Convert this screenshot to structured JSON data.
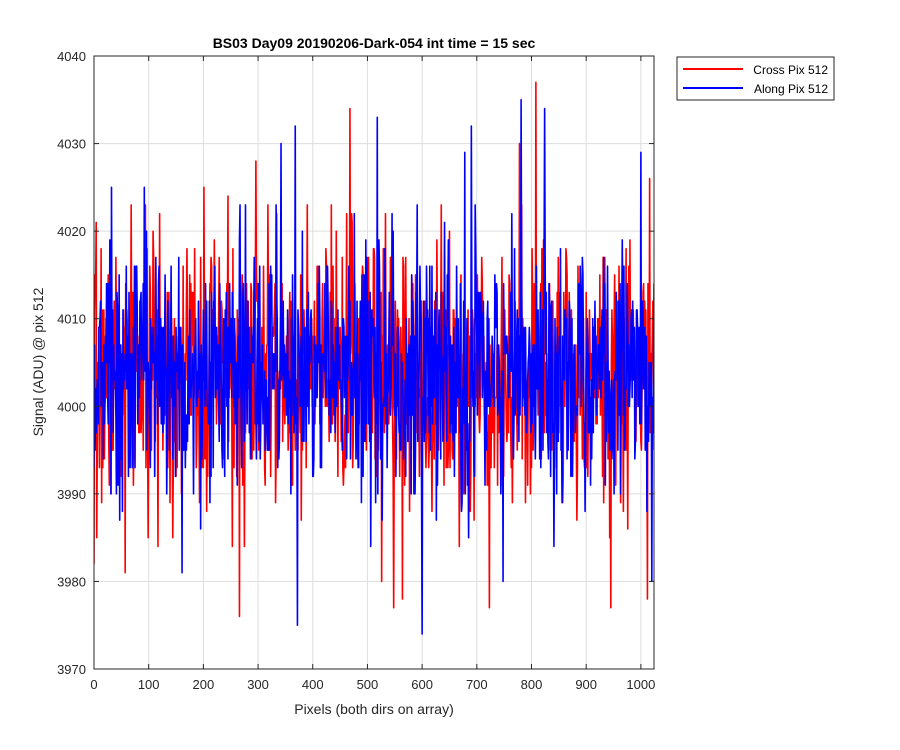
{
  "chart_data": {
    "type": "line",
    "title": "BS03 Day09 20190206-Dark-054 int time = 15 sec",
    "xlabel": "Pixels (both dirs on array)",
    "ylabel": "Signal (ADU) @ pix 512",
    "xlim": [
      0,
      1024
    ],
    "ylim": [
      3970,
      4040
    ],
    "xticks": [
      0,
      100,
      200,
      300,
      400,
      500,
      600,
      700,
      800,
      900,
      1000
    ],
    "yticks": [
      3970,
      3980,
      3990,
      4000,
      4010,
      4020,
      4030,
      4040
    ],
    "grid": true,
    "legend_position": "outside top-right",
    "series": [
      {
        "name": "Cross Pix 512",
        "color": "#ff0000",
        "seed": 7,
        "mean": 4004,
        "std": 7.5,
        "extremes": [
          {
            "x": 0,
            "y": 3982
          },
          {
            "x": 5,
            "y": 3985
          },
          {
            "x": 57,
            "y": 3981
          },
          {
            "x": 120,
            "y": 4022
          },
          {
            "x": 201,
            "y": 4025
          },
          {
            "x": 245,
            "y": 4024
          },
          {
            "x": 266,
            "y": 3976
          },
          {
            "x": 296,
            "y": 4028
          },
          {
            "x": 468,
            "y": 4034
          },
          {
            "x": 526,
            "y": 3980
          },
          {
            "x": 548,
            "y": 3977
          },
          {
            "x": 564,
            "y": 3978
          },
          {
            "x": 723,
            "y": 3977
          },
          {
            "x": 778,
            "y": 4030
          },
          {
            "x": 808,
            "y": 4037
          },
          {
            "x": 945,
            "y": 3977
          },
          {
            "x": 1016,
            "y": 4026
          },
          {
            "x": 1012,
            "y": 3978
          }
        ]
      },
      {
        "name": "Along Pix 512",
        "color": "#0000ff",
        "seed": 13,
        "mean": 4004,
        "std": 7.0,
        "extremes": [
          {
            "x": 32,
            "y": 4025
          },
          {
            "x": 92,
            "y": 4025
          },
          {
            "x": 161,
            "y": 3981
          },
          {
            "x": 342,
            "y": 4030
          },
          {
            "x": 368,
            "y": 4032
          },
          {
            "x": 372,
            "y": 3975
          },
          {
            "x": 518,
            "y": 4033
          },
          {
            "x": 591,
            "y": 4023
          },
          {
            "x": 600,
            "y": 3974
          },
          {
            "x": 678,
            "y": 4029
          },
          {
            "x": 690,
            "y": 4032
          },
          {
            "x": 748,
            "y": 3980
          },
          {
            "x": 781,
            "y": 4035
          },
          {
            "x": 824,
            "y": 4034
          },
          {
            "x": 966,
            "y": 4019
          },
          {
            "x": 1000,
            "y": 4029
          },
          {
            "x": 1020,
            "y": 3980
          }
        ]
      }
    ]
  }
}
